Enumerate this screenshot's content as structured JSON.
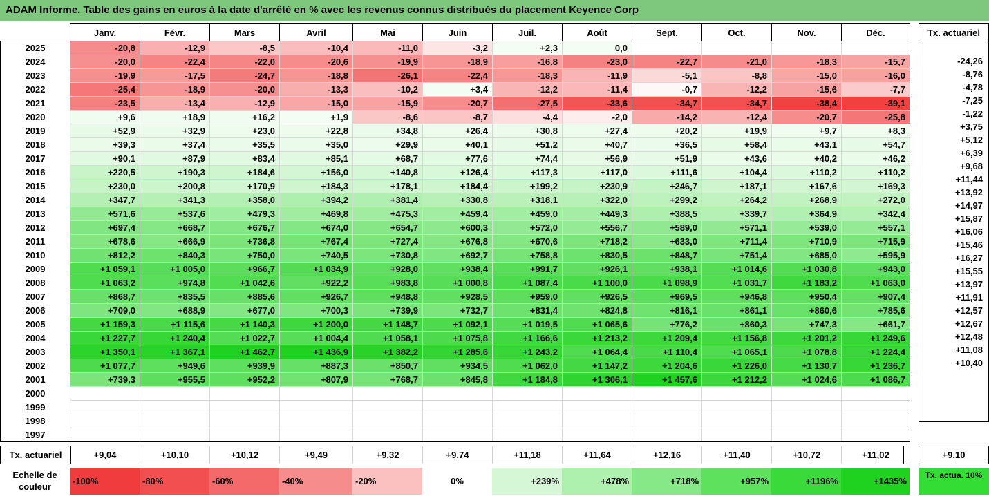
{
  "title": "ADAM Informe. Table des gains en euros à la date d'arrêté en % avec les revenus connus distribués du placement Keyence Corp",
  "chart_data": {
    "type": "heatmap",
    "months": [
      "Janv.",
      "Févr.",
      "Mars",
      "Avril",
      "Mai",
      "Juin",
      "Juil.",
      "Août",
      "Sept.",
      "Oct.",
      "Nov.",
      "Déc."
    ],
    "rows": [
      {
        "year": "2025",
        "values": [
          "-20,8",
          "-12,9",
          "-8,5",
          "-10,4",
          "-11,0",
          "-3,2",
          "+2,3",
          "0,0",
          "",
          "",
          "",
          ""
        ],
        "tx": ""
      },
      {
        "year": "2024",
        "values": [
          "-20,0",
          "-22,4",
          "-22,0",
          "-20,6",
          "-19,9",
          "-18,9",
          "-16,8",
          "-23,0",
          "-22,7",
          "-21,0",
          "-18,3",
          "-15,7"
        ],
        "tx": "-24,26"
      },
      {
        "year": "2023",
        "values": [
          "-19,9",
          "-17,5",
          "-24,7",
          "-18,8",
          "-26,1",
          "-22,4",
          "-18,3",
          "-11,9",
          "-5,1",
          "-8,8",
          "-15,0",
          "-16,0"
        ],
        "tx": "-8,76"
      },
      {
        "year": "2022",
        "values": [
          "-25,4",
          "-18,9",
          "-20,0",
          "-13,3",
          "-10,2",
          "+3,4",
          "-12,2",
          "-11,4",
          "-0,7",
          "-12,2",
          "-15,6",
          "-7,7"
        ],
        "tx": "-4,78"
      },
      {
        "year": "2021",
        "values": [
          "-23,5",
          "-13,4",
          "-12,9",
          "-15,0",
          "-15,9",
          "-20,7",
          "-27,5",
          "-33,6",
          "-34,7",
          "-34,7",
          "-38,4",
          "-39,1"
        ],
        "tx": "-7,25"
      },
      {
        "year": "2020",
        "values": [
          "+9,6",
          "+18,9",
          "+16,2",
          "+1,9",
          "-8,6",
          "-8,7",
          "-4,4",
          "-2,0",
          "-14,2",
          "-12,4",
          "-20,7",
          "-25,8"
        ],
        "tx": "-1,22"
      },
      {
        "year": "2019",
        "values": [
          "+52,9",
          "+32,9",
          "+23,0",
          "+22,8",
          "+34,8",
          "+26,4",
          "+30,8",
          "+27,4",
          "+20,2",
          "+19,9",
          "+9,7",
          "+8,3"
        ],
        "tx": "+3,75"
      },
      {
        "year": "2018",
        "values": [
          "+39,3",
          "+37,4",
          "+35,5",
          "+35,0",
          "+29,9",
          "+40,1",
          "+51,2",
          "+40,7",
          "+36,5",
          "+58,4",
          "+43,1",
          "+54,7"
        ],
        "tx": "+5,12"
      },
      {
        "year": "2017",
        "values": [
          "+90,1",
          "+87,9",
          "+83,4",
          "+85,1",
          "+68,7",
          "+77,6",
          "+74,4",
          "+56,9",
          "+51,9",
          "+43,6",
          "+40,2",
          "+46,2"
        ],
        "tx": "+6,39"
      },
      {
        "year": "2016",
        "values": [
          "+220,5",
          "+190,3",
          "+184,6",
          "+156,0",
          "+140,8",
          "+126,4",
          "+117,3",
          "+117,0",
          "+111,6",
          "+104,4",
          "+110,2",
          "+110,2"
        ],
        "tx": "+9,68"
      },
      {
        "year": "2015",
        "values": [
          "+230,0",
          "+200,8",
          "+170,9",
          "+184,3",
          "+178,1",
          "+184,4",
          "+199,2",
          "+230,9",
          "+246,7",
          "+187,1",
          "+167,6",
          "+169,3"
        ],
        "tx": "+11,44"
      },
      {
        "year": "2014",
        "values": [
          "+347,7",
          "+341,3",
          "+358,0",
          "+394,2",
          "+381,4",
          "+330,8",
          "+318,1",
          "+322,0",
          "+299,2",
          "+264,2",
          "+268,9",
          "+272,0"
        ],
        "tx": "+13,92"
      },
      {
        "year": "2013",
        "values": [
          "+571,6",
          "+537,6",
          "+479,3",
          "+469,8",
          "+475,3",
          "+459,4",
          "+459,0",
          "+449,3",
          "+388,5",
          "+339,7",
          "+364,9",
          "+342,4"
        ],
        "tx": "+14,97"
      },
      {
        "year": "2012",
        "values": [
          "+697,4",
          "+668,7",
          "+676,7",
          "+674,0",
          "+654,7",
          "+600,3",
          "+572,0",
          "+556,7",
          "+589,0",
          "+571,1",
          "+539,0",
          "+557,1"
        ],
        "tx": "+15,87"
      },
      {
        "year": "2011",
        "values": [
          "+678,6",
          "+666,9",
          "+736,8",
          "+767,4",
          "+727,4",
          "+676,8",
          "+670,6",
          "+718,2",
          "+633,0",
          "+711,4",
          "+710,9",
          "+715,9"
        ],
        "tx": "+16,06"
      },
      {
        "year": "2010",
        "values": [
          "+812,2",
          "+840,3",
          "+750,0",
          "+740,5",
          "+730,8",
          "+692,7",
          "+758,8",
          "+830,5",
          "+848,7",
          "+751,4",
          "+685,0",
          "+595,9"
        ],
        "tx": "+15,46"
      },
      {
        "year": "2009",
        "values": [
          "+1 059,1",
          "+1 005,0",
          "+966,7",
          "+1 034,9",
          "+928,0",
          "+938,4",
          "+991,7",
          "+926,1",
          "+938,1",
          "+1 014,6",
          "+1 030,8",
          "+943,0"
        ],
        "tx": "+16,27"
      },
      {
        "year": "2008",
        "values": [
          "+1 063,2",
          "+974,8",
          "+1 042,6",
          "+922,2",
          "+983,8",
          "+1 000,8",
          "+1 087,4",
          "+1 100,0",
          "+1 098,9",
          "+1 031,7",
          "+1 183,2",
          "+1 063,0"
        ],
        "tx": "+15,55"
      },
      {
        "year": "2007",
        "values": [
          "+868,7",
          "+835,5",
          "+885,6",
          "+926,7",
          "+948,8",
          "+928,5",
          "+959,0",
          "+926,5",
          "+969,5",
          "+946,8",
          "+950,4",
          "+907,4"
        ],
        "tx": "+13,97"
      },
      {
        "year": "2006",
        "values": [
          "+709,0",
          "+688,9",
          "+677,0",
          "+700,3",
          "+739,9",
          "+732,7",
          "+831,4",
          "+824,8",
          "+816,1",
          "+861,1",
          "+860,6",
          "+785,6"
        ],
        "tx": "+11,91"
      },
      {
        "year": "2005",
        "values": [
          "+1 159,3",
          "+1 115,6",
          "+1 140,3",
          "+1 200,0",
          "+1 148,7",
          "+1 092,1",
          "+1 019,5",
          "+1 065,6",
          "+776,2",
          "+860,3",
          "+747,3",
          "+661,7"
        ],
        "tx": "+12,57"
      },
      {
        "year": "2004",
        "values": [
          "+1 227,7",
          "+1 240,4",
          "+1 022,7",
          "+1 004,4",
          "+1 058,1",
          "+1 075,8",
          "+1 166,6",
          "+1 213,2",
          "+1 209,4",
          "+1 156,8",
          "+1 201,2",
          "+1 249,6"
        ],
        "tx": "+12,67"
      },
      {
        "year": "2003",
        "values": [
          "+1 350,1",
          "+1 367,1",
          "+1 462,7",
          "+1 436,9",
          "+1 382,2",
          "+1 285,6",
          "+1 243,2",
          "+1 064,4",
          "+1 110,4",
          "+1 065,1",
          "+1 078,8",
          "+1 224,4"
        ],
        "tx": "+12,48"
      },
      {
        "year": "2002",
        "values": [
          "+1 077,7",
          "+949,6",
          "+939,9",
          "+887,3",
          "+850,7",
          "+934,5",
          "+1 062,0",
          "+1 147,2",
          "+1 204,6",
          "+1 226,0",
          "+1 130,7",
          "+1 236,7"
        ],
        "tx": "+11,08"
      },
      {
        "year": "2001",
        "values": [
          "+739,3",
          "+955,5",
          "+952,2",
          "+807,9",
          "+768,7",
          "+845,8",
          "+1 184,8",
          "+1 306,1",
          "+1 457,6",
          "+1 212,2",
          "+1 024,6",
          "+1 086,7"
        ],
        "tx": "+10,40"
      },
      {
        "year": "2000",
        "values": [
          "",
          "",
          "",
          "",
          "",
          "",
          "",
          "",
          "",
          "",
          "",
          ""
        ],
        "tx": ""
      },
      {
        "year": "1999",
        "values": [
          "",
          "",
          "",
          "",
          "",
          "",
          "",
          "",
          "",
          "",
          "",
          ""
        ],
        "tx": ""
      },
      {
        "year": "1998",
        "values": [
          "",
          "",
          "",
          "",
          "",
          "",
          "",
          "",
          "",
          "",
          "",
          ""
        ],
        "tx": ""
      },
      {
        "year": "1997",
        "values": [
          "",
          "",
          "",
          "",
          "",
          "",
          "",
          "",
          "",
          "",
          "",
          ""
        ],
        "tx": ""
      }
    ],
    "tx_header": "Tx. actuariel",
    "footer_label": "Tx. actuariel",
    "footer_values": [
      "+9,04",
      "+10,10",
      "+10,12",
      "+9,49",
      "+9,32",
      "+9,74",
      "+11,18",
      "+11,64",
      "+12,16",
      "+11,40",
      "+10,72",
      "+11,02"
    ],
    "footer_total": "+9,10",
    "scale_label": "Echelle de couleur",
    "scale": [
      {
        "label": "-100%",
        "color": "#f03c3c",
        "align": "left"
      },
      {
        "label": "-80%",
        "color": "#f25050",
        "align": "left"
      },
      {
        "label": "-60%",
        "color": "#f46a6a",
        "align": "left"
      },
      {
        "label": "-40%",
        "color": "#f78c8c",
        "align": "left"
      },
      {
        "label": "-20%",
        "color": "#fbc0c0",
        "align": "left"
      },
      {
        "label": "0%",
        "color": "#ffffff",
        "align": "center"
      },
      {
        "label": "+239%",
        "color": "#d6f7d6",
        "align": "right"
      },
      {
        "label": "+478%",
        "color": "#aef0ae",
        "align": "right"
      },
      {
        "label": "+718%",
        "color": "#86e886",
        "align": "right"
      },
      {
        "label": "+957%",
        "color": "#5ee25e",
        "align": "right"
      },
      {
        "label": "+1196%",
        "color": "#3ada3a",
        "align": "right"
      },
      {
        "label": "+1435%",
        "color": "#1fd21f",
        "align": "right"
      }
    ],
    "tx_legend": "Tx. actua. 10%",
    "colors": {
      "title_bg": "#7ec87e",
      "negative_max": "#f03c3c",
      "positive_max": "#1fd21f",
      "legend_tx": "#33dd33"
    }
  }
}
